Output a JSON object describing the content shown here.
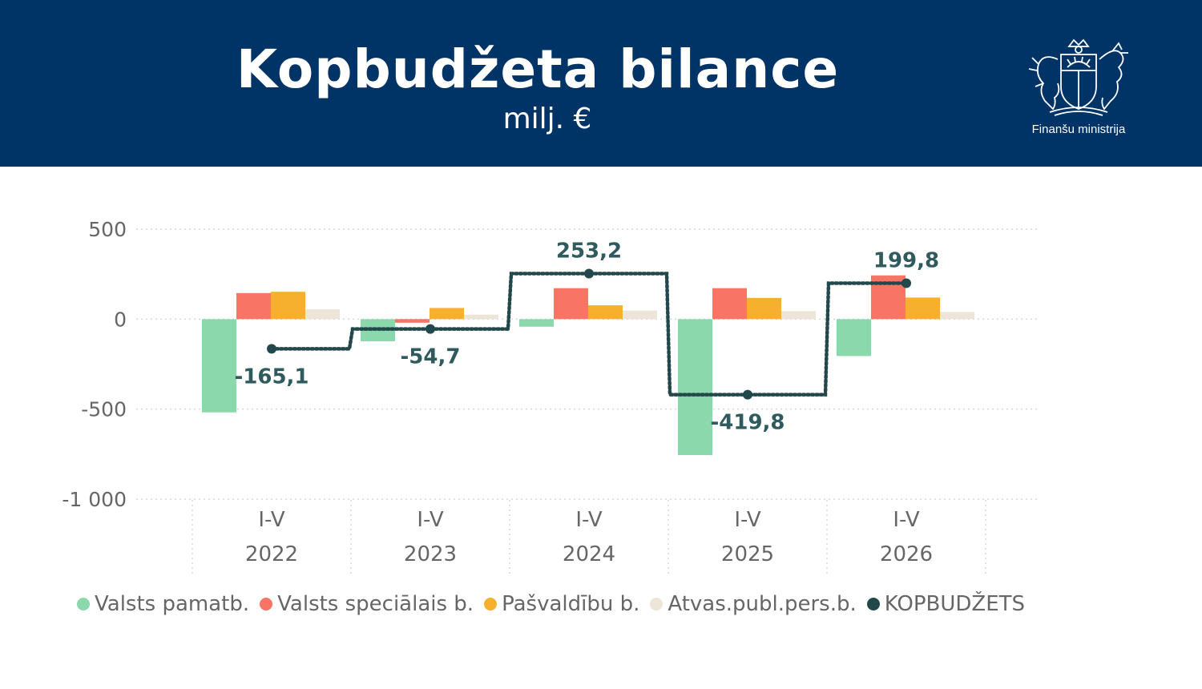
{
  "header": {
    "title": "Kopbudžeta bilance",
    "subtitle": "milj. €",
    "org": "Finanšu ministrija"
  },
  "chart_data": {
    "type": "bar",
    "categories": [
      [
        "I-V",
        "2022"
      ],
      [
        "I-V",
        "2023"
      ],
      [
        "I-V",
        "2024"
      ],
      [
        "I-V",
        "2025"
      ],
      [
        "I-V",
        "2026"
      ]
    ],
    "ylim": [
      -1000,
      500
    ],
    "yticks": [
      500,
      0,
      -500,
      -1000
    ],
    "ytick_labels": [
      "500",
      "0",
      "-500",
      "-1 000"
    ],
    "grid": true,
    "legend_position": "bottom",
    "series": [
      {
        "name": "Valsts pamatb.",
        "color": "#8ad8ac",
        "values": [
          -518,
          -123,
          -42,
          -755,
          -205
        ]
      },
      {
        "name": "Valsts speciālais b.",
        "color": "#f87464",
        "values": [
          145,
          -20,
          172,
          172,
          243
        ]
      },
      {
        "name": "Pašvaldību b.",
        "color": "#f6b02e",
        "values": [
          152,
          62,
          77,
          118,
          120
        ]
      },
      {
        "name": "Atvas.publ.pers.b.",
        "color": "#ece5d8",
        "values": [
          55,
          25,
          48,
          45,
          40
        ]
      }
    ],
    "line_series": {
      "name": "KOPBUDŽETS",
      "color": "#22484c",
      "style": "dotted-step",
      "values": [
        -165.1,
        -54.7,
        253.2,
        -419.8,
        199.8
      ],
      "labels": [
        "-165,1",
        "-54,7",
        "253,2",
        "-419,8",
        "199,8"
      ]
    }
  }
}
